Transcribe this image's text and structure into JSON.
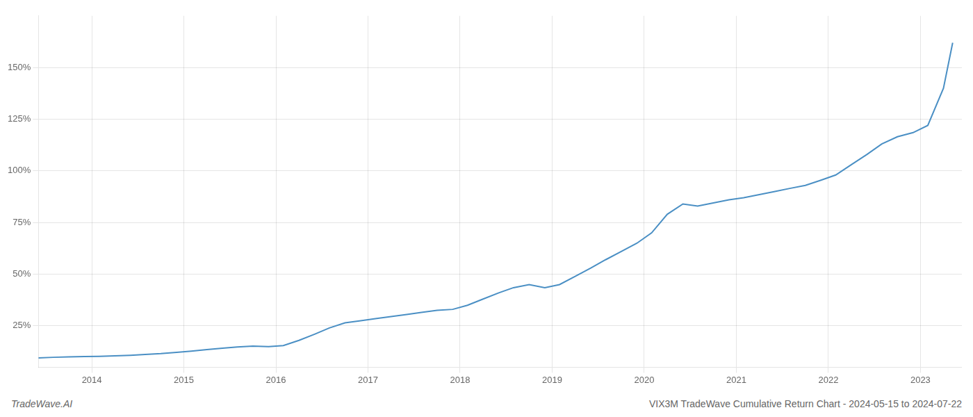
{
  "chart_data": {
    "type": "line",
    "x": [
      2013.42,
      2013.58,
      2013.75,
      2013.92,
      2014.08,
      2014.25,
      2014.42,
      2014.58,
      2014.75,
      2014.92,
      2015.08,
      2015.25,
      2015.42,
      2015.58,
      2015.75,
      2015.92,
      2016.08,
      2016.25,
      2016.42,
      2016.58,
      2016.75,
      2016.92,
      2017.08,
      2017.25,
      2017.42,
      2017.58,
      2017.75,
      2017.92,
      2018.08,
      2018.25,
      2018.42,
      2018.58,
      2018.75,
      2018.92,
      2019.08,
      2019.25,
      2019.42,
      2019.58,
      2019.75,
      2019.92,
      2020.08,
      2020.25,
      2020.42,
      2020.58,
      2020.75,
      2020.92,
      2021.08,
      2021.25,
      2021.42,
      2021.58,
      2021.75,
      2021.92,
      2022.08,
      2022.25,
      2022.42,
      2022.58,
      2022.75,
      2022.92,
      2023.08,
      2023.25,
      2023.35
    ],
    "values": [
      9.5,
      9.8,
      10.0,
      10.2,
      10.3,
      10.5,
      10.8,
      11.2,
      11.6,
      12.2,
      12.8,
      13.5,
      14.2,
      14.8,
      15.2,
      15.0,
      15.5,
      18.0,
      21.0,
      24.0,
      26.5,
      27.5,
      28.5,
      29.5,
      30.5,
      31.5,
      32.5,
      33.0,
      35.0,
      38.0,
      41.0,
      43.5,
      45.0,
      43.5,
      45.0,
      49.0,
      53.0,
      57.0,
      61.0,
      65.0,
      70.0,
      79.0,
      84.0,
      83.0,
      84.5,
      86.0,
      87.0,
      88.5,
      90.0,
      91.5,
      93.0,
      95.5,
      98.0,
      103.0,
      108.0,
      113.0,
      116.5,
      118.5,
      122.0,
      140.0,
      162.0
    ],
    "color": "#4a8fc4",
    "xlim": [
      2013.42,
      2023.45
    ],
    "xticks": [
      2014,
      2015,
      2016,
      2017,
      2018,
      2019,
      2020,
      2021,
      2022,
      2023
    ],
    "ylim": [
      5,
      175
    ],
    "yticks": [
      {
        "value": 25,
        "label": "25%"
      },
      {
        "value": 50,
        "label": "50%"
      },
      {
        "value": 75,
        "label": "75%"
      },
      {
        "value": 100,
        "label": "100%"
      },
      {
        "value": 125,
        "label": "125%"
      },
      {
        "value": 150,
        "label": "150%"
      }
    ],
    "grid": true,
    "annotations": [
      "TradeWave.AI",
      "VIX3M TradeWave Cumulative Return Chart - 2024-05-15 to 2024-07-22"
    ]
  }
}
